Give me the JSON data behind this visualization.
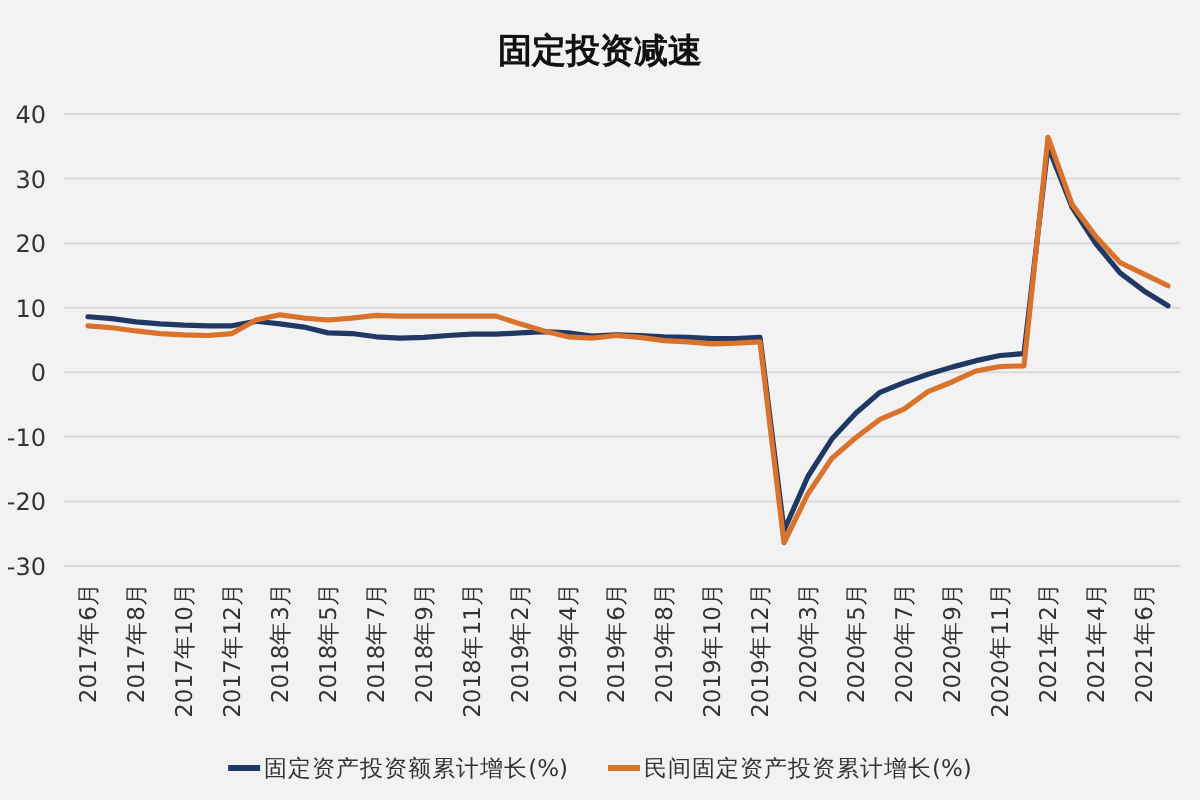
{
  "chart_data": {
    "type": "line",
    "title": "固定投资减速",
    "categories": [
      "2017年6月",
      null,
      "2017年8月",
      null,
      "2017年10月",
      null,
      "2017年12月",
      null,
      "2018年3月",
      null,
      "2018年5月",
      null,
      "2018年7月",
      null,
      "2018年9月",
      null,
      "2018年11月",
      null,
      "2019年2月",
      null,
      "2019年4月",
      null,
      "2019年6月",
      null,
      "2019年8月",
      null,
      "2019年10月",
      null,
      "2019年12月",
      null,
      "2020年3月",
      null,
      "2020年5月",
      null,
      "2020年7月",
      null,
      "2020年9月",
      null,
      "2020年11月",
      null,
      "2021年2月",
      null,
      "2021年4月",
      null,
      "2021年6月",
      null
    ],
    "series": [
      {
        "name": "固定资产投资额累计增长(%)",
        "color": "#203864",
        "values": [
          8.6,
          8.3,
          7.8,
          7.5,
          7.3,
          7.2,
          7.2,
          7.9,
          7.5,
          7.0,
          6.1,
          6.0,
          5.5,
          5.3,
          5.4,
          5.7,
          5.9,
          5.9,
          6.1,
          6.3,
          6.1,
          5.6,
          5.8,
          5.7,
          5.5,
          5.4,
          5.2,
          5.2,
          5.4,
          -24.5,
          -16.1,
          -10.3,
          -6.3,
          -3.1,
          -1.6,
          -0.3,
          0.8,
          1.8,
          2.6,
          2.9,
          35.0,
          25.6,
          19.9,
          15.4,
          12.6,
          10.3
        ]
      },
      {
        "name": "民间固定资产投资累计增长(%)",
        "color": "#d9722a",
        "values": [
          7.2,
          6.9,
          6.4,
          6.0,
          5.8,
          5.7,
          6.0,
          8.1,
          8.9,
          8.4,
          8.1,
          8.4,
          8.8,
          8.7,
          8.7,
          8.7,
          8.7,
          8.7,
          7.5,
          6.4,
          5.5,
          5.3,
          5.7,
          5.4,
          4.9,
          4.7,
          4.4,
          4.5,
          4.7,
          -26.4,
          -18.8,
          -13.3,
          -10.1,
          -7.3,
          -5.7,
          -3.0,
          -1.5,
          0.2,
          0.9,
          1.0,
          36.4,
          26.0,
          21.0,
          17.0,
          15.2,
          13.4
        ]
      }
    ],
    "ylim": [
      -30,
      40
    ],
    "yticks": [
      -30,
      -20,
      -10,
      0,
      10,
      20,
      30,
      40
    ],
    "grid": "y",
    "legend": "bottom",
    "marker": "none",
    "line_style": "solid"
  }
}
